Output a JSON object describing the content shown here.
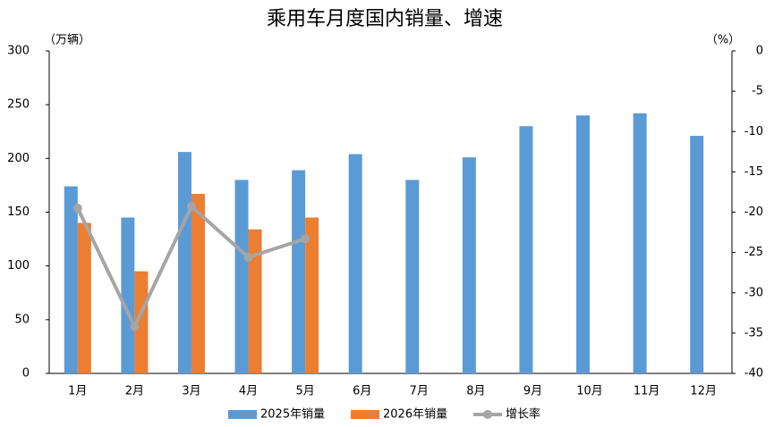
{
  "chart_data": {
    "type": "bar",
    "title": "乘用车月度国内销量、增速",
    "y_label": "（万辆）",
    "y2_label": "（%）",
    "categories": [
      "1月",
      "2月",
      "3月",
      "4月",
      "5月",
      "6月",
      "7月",
      "8月",
      "9月",
      "10月",
      "11月",
      "12月"
    ],
    "series": [
      {
        "name": "2025年销量",
        "color": "#5b9bd5",
        "type": "bar",
        "values": [
          174,
          145,
          206,
          180,
          189,
          204,
          180,
          201,
          230,
          240,
          242,
          221
        ]
      },
      {
        "name": "2026年销量",
        "color": "#ed7d31",
        "type": "bar",
        "values": [
          140,
          95,
          167,
          134,
          145,
          null,
          null,
          null,
          null,
          null,
          null,
          null
        ]
      },
      {
        "name": "增长率",
        "color": "#a5a5a5",
        "type": "line",
        "axis": "y2",
        "values": [
          -19.5,
          -34.2,
          -19.3,
          -25.6,
          -23.3,
          null,
          null,
          null,
          null,
          null,
          null,
          null
        ]
      }
    ],
    "ylim": [
      0,
      300
    ],
    "yticks": [
      0,
      50,
      100,
      150,
      200,
      250,
      300
    ],
    "y2lim": [
      -40,
      0
    ],
    "y2ticks": [
      0,
      -5,
      -10,
      -15,
      -20,
      -25,
      -30,
      -35,
      -40
    ],
    "y2_color": "#ff0000",
    "grid": false,
    "legend": "bottom"
  }
}
